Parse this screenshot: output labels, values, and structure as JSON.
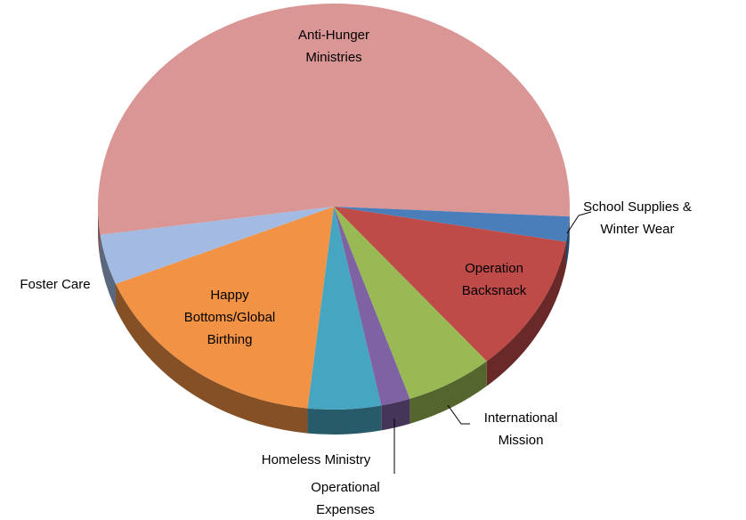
{
  "chart_data": {
    "type": "pie",
    "categories": [
      "Anti-Hunger\nMinistries",
      "School Supplies &\nWinter Wear",
      "Operation\nBacksnack",
      "International\nMission",
      "Operational\nExpenses",
      "Homeless Ministry",
      "Happy\nBottoms/Global\nBirthing",
      "Foster Care"
    ],
    "values": [
      53,
      2,
      11,
      6,
      2,
      5,
      17,
      4
    ],
    "colors": [
      "#d99694",
      "#4a7ebb",
      "#be4b48",
      "#98b954",
      "#7e62a1",
      "#46a5c1",
      "#f29245",
      "#a3bbe2"
    ]
  }
}
